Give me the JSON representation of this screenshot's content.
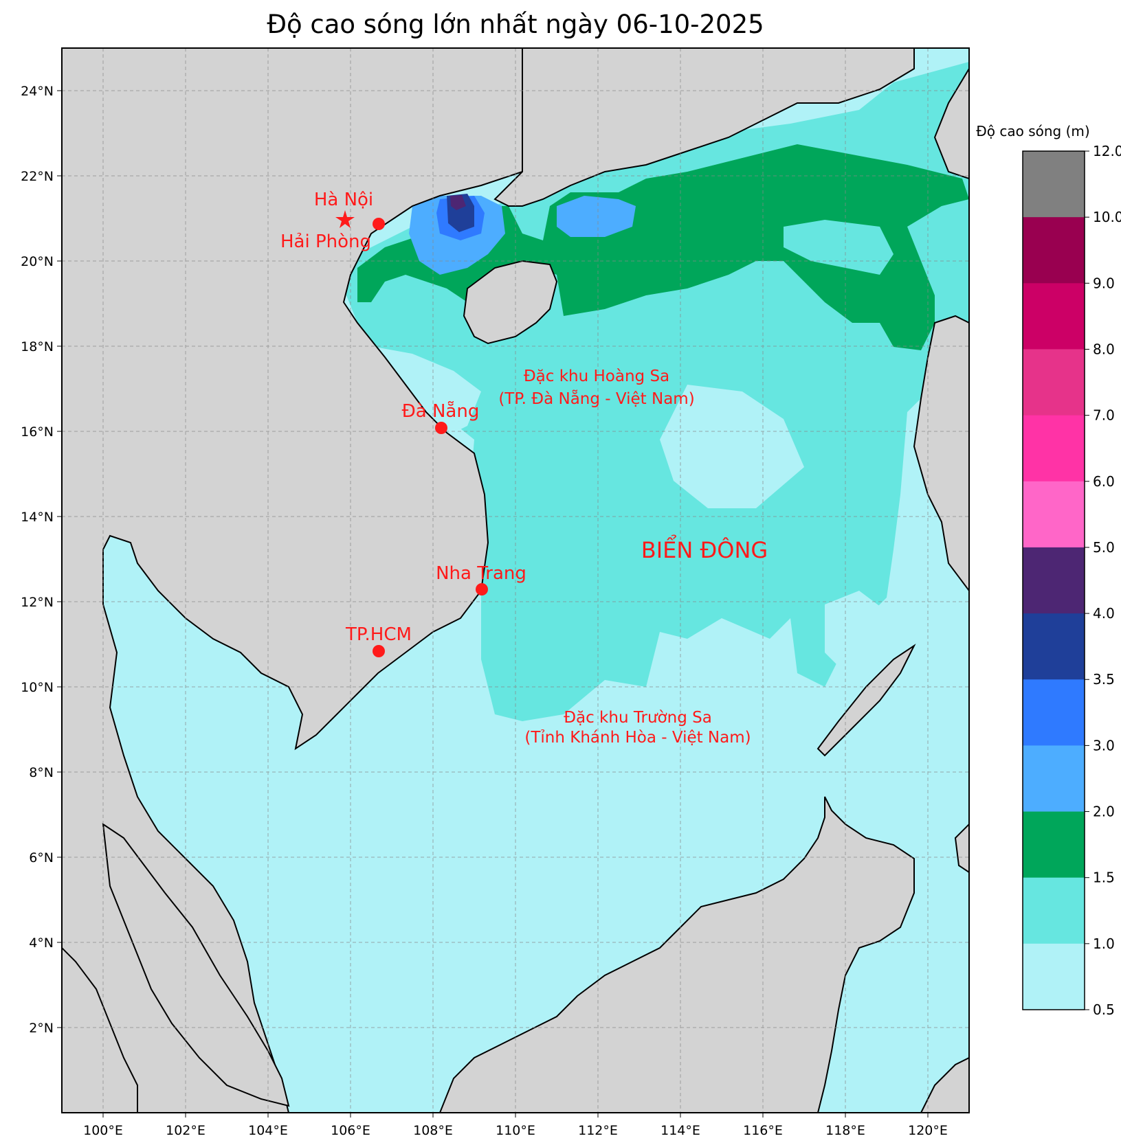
{
  "title": "Độ cao sóng lớn nhất ngày 06-10-2025",
  "axes": {
    "lon_labels": [
      "100°E",
      "102°E",
      "104°E",
      "106°E",
      "108°E",
      "110°E",
      "112°E",
      "114°E",
      "116°E",
      "118°E",
      "120°E"
    ],
    "lat_labels": [
      "24°N",
      "22°N",
      "20°N",
      "18°N",
      "16°N",
      "14°N",
      "12°N",
      "10°N",
      "8°N",
      "6°N",
      "4°N",
      "2°N"
    ],
    "lon_range": [
      99,
      121
    ],
    "lat_range": [
      0,
      25
    ],
    "grid": true
  },
  "cities": [
    {
      "name": "Hà Nội",
      "marker": "star"
    },
    {
      "name": "Hải Phòng",
      "marker": "dot"
    },
    {
      "name": "Đà Nẵng",
      "marker": "dot"
    },
    {
      "name": "Nha Trang",
      "marker": "dot"
    },
    {
      "name": "TP.HCM",
      "marker": "dot"
    }
  ],
  "regions": {
    "hoang_sa_line1": "Đặc khu Hoàng Sa",
    "hoang_sa_line2": "(TP. Đà Nẵng - Việt Nam)",
    "truong_sa_line1": "Đặc khu Trường Sa",
    "truong_sa_line2": "(Tỉnh Khánh Hòa - Việt Nam)",
    "sea": "BIỂN ĐÔNG"
  },
  "colorbar": {
    "title": "Độ cao sóng (m)",
    "ticks": [
      "12.0",
      "10.0",
      "9.0",
      "8.0",
      "7.0",
      "6.0",
      "5.0",
      "4.0",
      "3.5",
      "3.0",
      "2.0",
      "1.5",
      "1.0",
      "0.5"
    ],
    "colors": [
      "#808080",
      "#990050",
      "#cc0066",
      "#e6338a",
      "#ff33a6",
      "#ff66c8",
      "#4d2673",
      "#1f3f99",
      "#2f7aff",
      "#4dadff",
      "#00a65a",
      "#66e6e0",
      "#b0f2f7"
    ]
  },
  "colors": {
    "land": "#d3d3d3",
    "sea_low": "#b0f2f7",
    "sea_mid": "#66e6e0",
    "sea_green": "#00a65a",
    "sea_blue2": "#4dadff",
    "sea_blue3": "#2f7aff",
    "sea_navy": "#1f3f99",
    "sea_purple": "#4d2673",
    "labels": "#ff1a1a"
  }
}
